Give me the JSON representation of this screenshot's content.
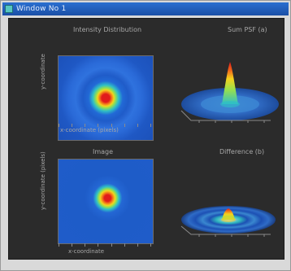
{
  "window": {
    "title": "Window No 1",
    "accent": "#1b4fa6"
  },
  "panels": {
    "top_left": {
      "title": "Intensity Distribution",
      "xlabel": "x-coordinate (pixels)",
      "ylabel": "y-coordinate"
    },
    "top_right": {
      "title": "Sum PSF (a)"
    },
    "bottom_left": {
      "title": "Image",
      "xlabel": "x-coordinate",
      "ylabel": "y-coordinate (pixels)"
    },
    "bottom_right": {
      "title": "Difference (b)"
    }
  },
  "colormap": [
    "#1c52bb",
    "#2fbfc6",
    "#9be04a",
    "#f5d21d",
    "#f0661a",
    "#e11b1b"
  ]
}
